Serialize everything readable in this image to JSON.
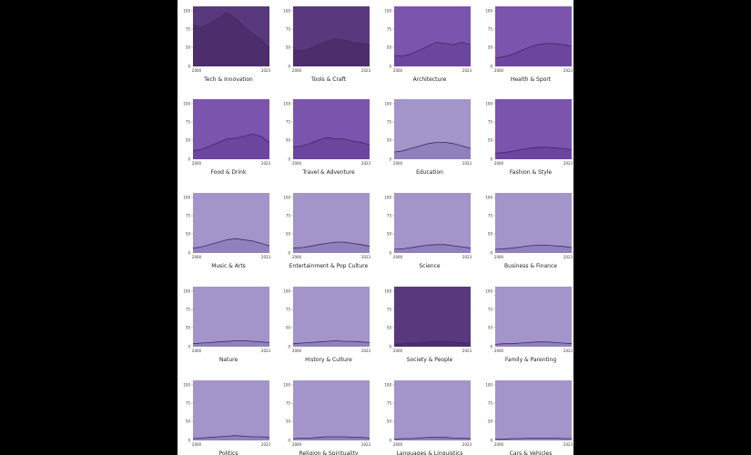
{
  "colors": {
    "page_background": "#000000",
    "panel_background": "#ffffff",
    "light_purple": "#a394c9",
    "medium_purple": "#7a54ad",
    "dark_purple": "#59397d",
    "dark_purple_fill": "#4a2e6a",
    "series_line": "#3f2866",
    "tick_accent": "#e08a2a"
  },
  "chart_data": [
    {
      "type": "area",
      "title": "Tech & Innovation",
      "shade": "dark",
      "xlabels": [
        "2000",
        "2023"
      ],
      "ylim": [
        0,
        100
      ],
      "yticks": [
        "100",
        "75",
        "50"
      ],
      "x": [
        0,
        1,
        2,
        3,
        4,
        5,
        6,
        7,
        8,
        9
      ],
      "values": [
        70,
        65,
        72,
        80,
        90,
        80,
        66,
        55,
        45,
        30
      ]
    },
    {
      "type": "area",
      "title": "Tools & Craft",
      "shade": "dark",
      "xlabels": [
        "2000",
        "2023"
      ],
      "ylim": [
        0,
        100
      ],
      "yticks": [
        "100",
        "75",
        "50"
      ],
      "x": [
        0,
        1,
        2,
        3,
        4,
        5,
        6,
        7,
        8,
        9
      ],
      "values": [
        28,
        26,
        30,
        36,
        42,
        46,
        44,
        40,
        38,
        36
      ]
    },
    {
      "type": "area",
      "title": "Architecture",
      "shade": "medium",
      "xlabels": [
        "2000",
        "2023"
      ],
      "ylim": [
        0,
        100
      ],
      "yticks": [
        "100",
        "75",
        "50"
      ],
      "x": [
        0,
        1,
        2,
        3,
        4,
        5,
        6,
        7,
        8,
        9
      ],
      "values": [
        18,
        17,
        21,
        27,
        34,
        40,
        38,
        36,
        40,
        36
      ]
    },
    {
      "type": "area",
      "title": "Health & Sport",
      "shade": "medium",
      "xlabels": [
        "2000",
        "2023"
      ],
      "ylim": [
        0,
        100
      ],
      "yticks": [
        "100",
        "75",
        "50"
      ],
      "x": [
        0,
        1,
        2,
        3,
        4,
        5,
        6,
        7,
        8,
        9
      ],
      "values": [
        14,
        16,
        20,
        26,
        32,
        36,
        38,
        38,
        36,
        34
      ]
    },
    {
      "type": "area",
      "title": "Food & Drink",
      "shade": "medium",
      "xlabels": [
        "2000",
        "2023"
      ],
      "ylim": [
        0,
        100
      ],
      "yticks": [
        "100",
        "75",
        "50"
      ],
      "x": [
        0,
        1,
        2,
        3,
        4,
        5,
        6,
        7,
        8,
        9
      ],
      "values": [
        14,
        16,
        22,
        28,
        34,
        35,
        38,
        42,
        38,
        28
      ]
    },
    {
      "type": "area",
      "title": "Travel & Adventure",
      "shade": "medium",
      "xlabels": [
        "2000",
        "2023"
      ],
      "ylim": [
        0,
        100
      ],
      "yticks": [
        "100",
        "75",
        "50"
      ],
      "x": [
        0,
        1,
        2,
        3,
        4,
        5,
        6,
        7,
        8,
        9
      ],
      "values": [
        20,
        22,
        26,
        32,
        36,
        34,
        34,
        30,
        28,
        24
      ]
    },
    {
      "type": "area",
      "title": "Education",
      "shade": "light",
      "xlabels": [
        "2000",
        "2023"
      ],
      "ylim": [
        0,
        100
      ],
      "yticks": [
        "100",
        "75",
        "50"
      ],
      "x": [
        0,
        1,
        2,
        3,
        4,
        5,
        6,
        7,
        8,
        9
      ],
      "values": [
        12,
        14,
        18,
        22,
        26,
        28,
        28,
        26,
        22,
        18
      ]
    },
    {
      "type": "area",
      "title": "Fashion & Style",
      "shade": "medium",
      "xlabels": [
        "2000",
        "2023"
      ],
      "ylim": [
        0,
        100
      ],
      "yticks": [
        "100",
        "75",
        "50"
      ],
      "x": [
        0,
        1,
        2,
        3,
        4,
        5,
        6,
        7,
        8,
        9
      ],
      "values": [
        10,
        11,
        13,
        16,
        18,
        20,
        20,
        19,
        18,
        16
      ]
    },
    {
      "type": "area",
      "title": "Music & Arts",
      "shade": "light",
      "xlabels": [
        "2000",
        "2023"
      ],
      "ylim": [
        0,
        100
      ],
      "yticks": [
        "100",
        "75",
        "50"
      ],
      "x": [
        0,
        1,
        2,
        3,
        4,
        5,
        6,
        7,
        8,
        9
      ],
      "values": [
        8,
        10,
        14,
        18,
        22,
        24,
        22,
        20,
        16,
        12
      ]
    },
    {
      "type": "area",
      "title": "Entertainment & Pop Culture",
      "shade": "light",
      "xlabels": [
        "2000",
        "2023"
      ],
      "ylim": [
        0,
        100
      ],
      "yticks": [
        "100",
        "75",
        "50"
      ],
      "x": [
        0,
        1,
        2,
        3,
        4,
        5,
        6,
        7,
        8,
        9
      ],
      "values": [
        8,
        9,
        11,
        14,
        16,
        18,
        18,
        16,
        14,
        11
      ]
    },
    {
      "type": "area",
      "title": "Science",
      "shade": "light",
      "xlabels": [
        "2000",
        "2023"
      ],
      "ylim": [
        0,
        100
      ],
      "yticks": [
        "100",
        "75",
        "50"
      ],
      "x": [
        0,
        1,
        2,
        3,
        4,
        5,
        6,
        7,
        8,
        9
      ],
      "values": [
        6,
        7,
        9,
        11,
        13,
        14,
        14,
        12,
        10,
        8
      ]
    },
    {
      "type": "area",
      "title": "Business & Finance",
      "shade": "light",
      "xlabels": [
        "2000",
        "2023"
      ],
      "ylim": [
        0,
        100
      ],
      "yticks": [
        "100",
        "75",
        "50"
      ],
      "x": [
        0,
        1,
        2,
        3,
        4,
        5,
        6,
        7,
        8,
        9
      ],
      "values": [
        6,
        7,
        8,
        10,
        12,
        13,
        13,
        12,
        11,
        9
      ]
    },
    {
      "type": "area",
      "title": "Nature",
      "shade": "light",
      "xlabels": [
        "2000",
        "2023"
      ],
      "ylim": [
        0,
        100
      ],
      "yticks": [
        "100",
        "75",
        "50"
      ],
      "x": [
        0,
        1,
        2,
        3,
        4,
        5,
        6,
        7,
        8,
        9
      ],
      "values": [
        5,
        6,
        7,
        8,
        9,
        10,
        10,
        9,
        8,
        7
      ]
    },
    {
      "type": "area",
      "title": "History & Culture",
      "shade": "light",
      "xlabels": [
        "2000",
        "2023"
      ],
      "ylim": [
        0,
        100
      ],
      "yticks": [
        "100",
        "75",
        "50"
      ],
      "x": [
        0,
        1,
        2,
        3,
        4,
        5,
        6,
        7,
        8,
        9
      ],
      "values": [
        5,
        6,
        7,
        8,
        9,
        10,
        9,
        9,
        8,
        7
      ]
    },
    {
      "type": "area",
      "title": "Society & People",
      "shade": "dark",
      "xlabels": [
        "2000",
        "2023"
      ],
      "ylim": [
        0,
        100
      ],
      "yticks": [
        "100",
        "75",
        "50"
      ],
      "x": [
        0,
        1,
        2,
        3,
        4,
        5,
        6,
        7,
        8,
        9
      ],
      "values": [
        4,
        5,
        6,
        7,
        8,
        9,
        9,
        8,
        7,
        6
      ]
    },
    {
      "type": "area",
      "title": "Family & Parenting",
      "shade": "light",
      "xlabels": [
        "2000",
        "2023"
      ],
      "ylim": [
        0,
        100
      ],
      "yticks": [
        "100",
        "75",
        "50"
      ],
      "x": [
        0,
        1,
        2,
        3,
        4,
        5,
        6,
        7,
        8,
        9
      ],
      "values": [
        4,
        5,
        5,
        6,
        7,
        8,
        8,
        7,
        6,
        5
      ]
    },
    {
      "type": "area",
      "title": "Politics",
      "shade": "light",
      "xlabels": [
        "2000",
        "2023"
      ],
      "ylim": [
        0,
        100
      ],
      "yticks": [
        "100",
        "75",
        "50"
      ],
      "x": [
        0,
        1,
        2,
        3,
        4,
        5,
        6,
        7,
        8,
        9
      ],
      "values": [
        3,
        4,
        5,
        6,
        7,
        8,
        7,
        6,
        6,
        5
      ]
    },
    {
      "type": "area",
      "title": "Religion & Spirituality",
      "shade": "light",
      "xlabels": [
        "2000",
        "2023"
      ],
      "ylim": [
        0,
        100
      ],
      "yticks": [
        "100",
        "75",
        "50"
      ],
      "x": [
        0,
        1,
        2,
        3,
        4,
        5,
        6,
        7,
        8,
        9
      ],
      "values": [
        3,
        4,
        4,
        5,
        6,
        6,
        6,
        5,
        5,
        4
      ]
    },
    {
      "type": "area",
      "title": "Languages & Linguistics",
      "shade": "light",
      "xlabels": [
        "2000",
        "2023"
      ],
      "ylim": [
        0,
        100
      ],
      "yticks": [
        "100",
        "75",
        "50"
      ],
      "x": [
        0,
        1,
        2,
        3,
        4,
        5,
        6,
        7,
        8,
        9
      ],
      "values": [
        2,
        3,
        3,
        4,
        5,
        5,
        5,
        4,
        4,
        3
      ]
    },
    {
      "type": "area",
      "title": "Cars & Vehicles",
      "shade": "light",
      "xlabels": [
        "2000",
        "2023"
      ],
      "ylim": [
        0,
        100
      ],
      "yticks": [
        "100",
        "75",
        "50"
      ],
      "x": [
        0,
        1,
        2,
        3,
        4,
        5,
        6,
        7,
        8,
        9
      ],
      "values": [
        2,
        2,
        3,
        3,
        4,
        4,
        4,
        4,
        3,
        3
      ]
    }
  ]
}
